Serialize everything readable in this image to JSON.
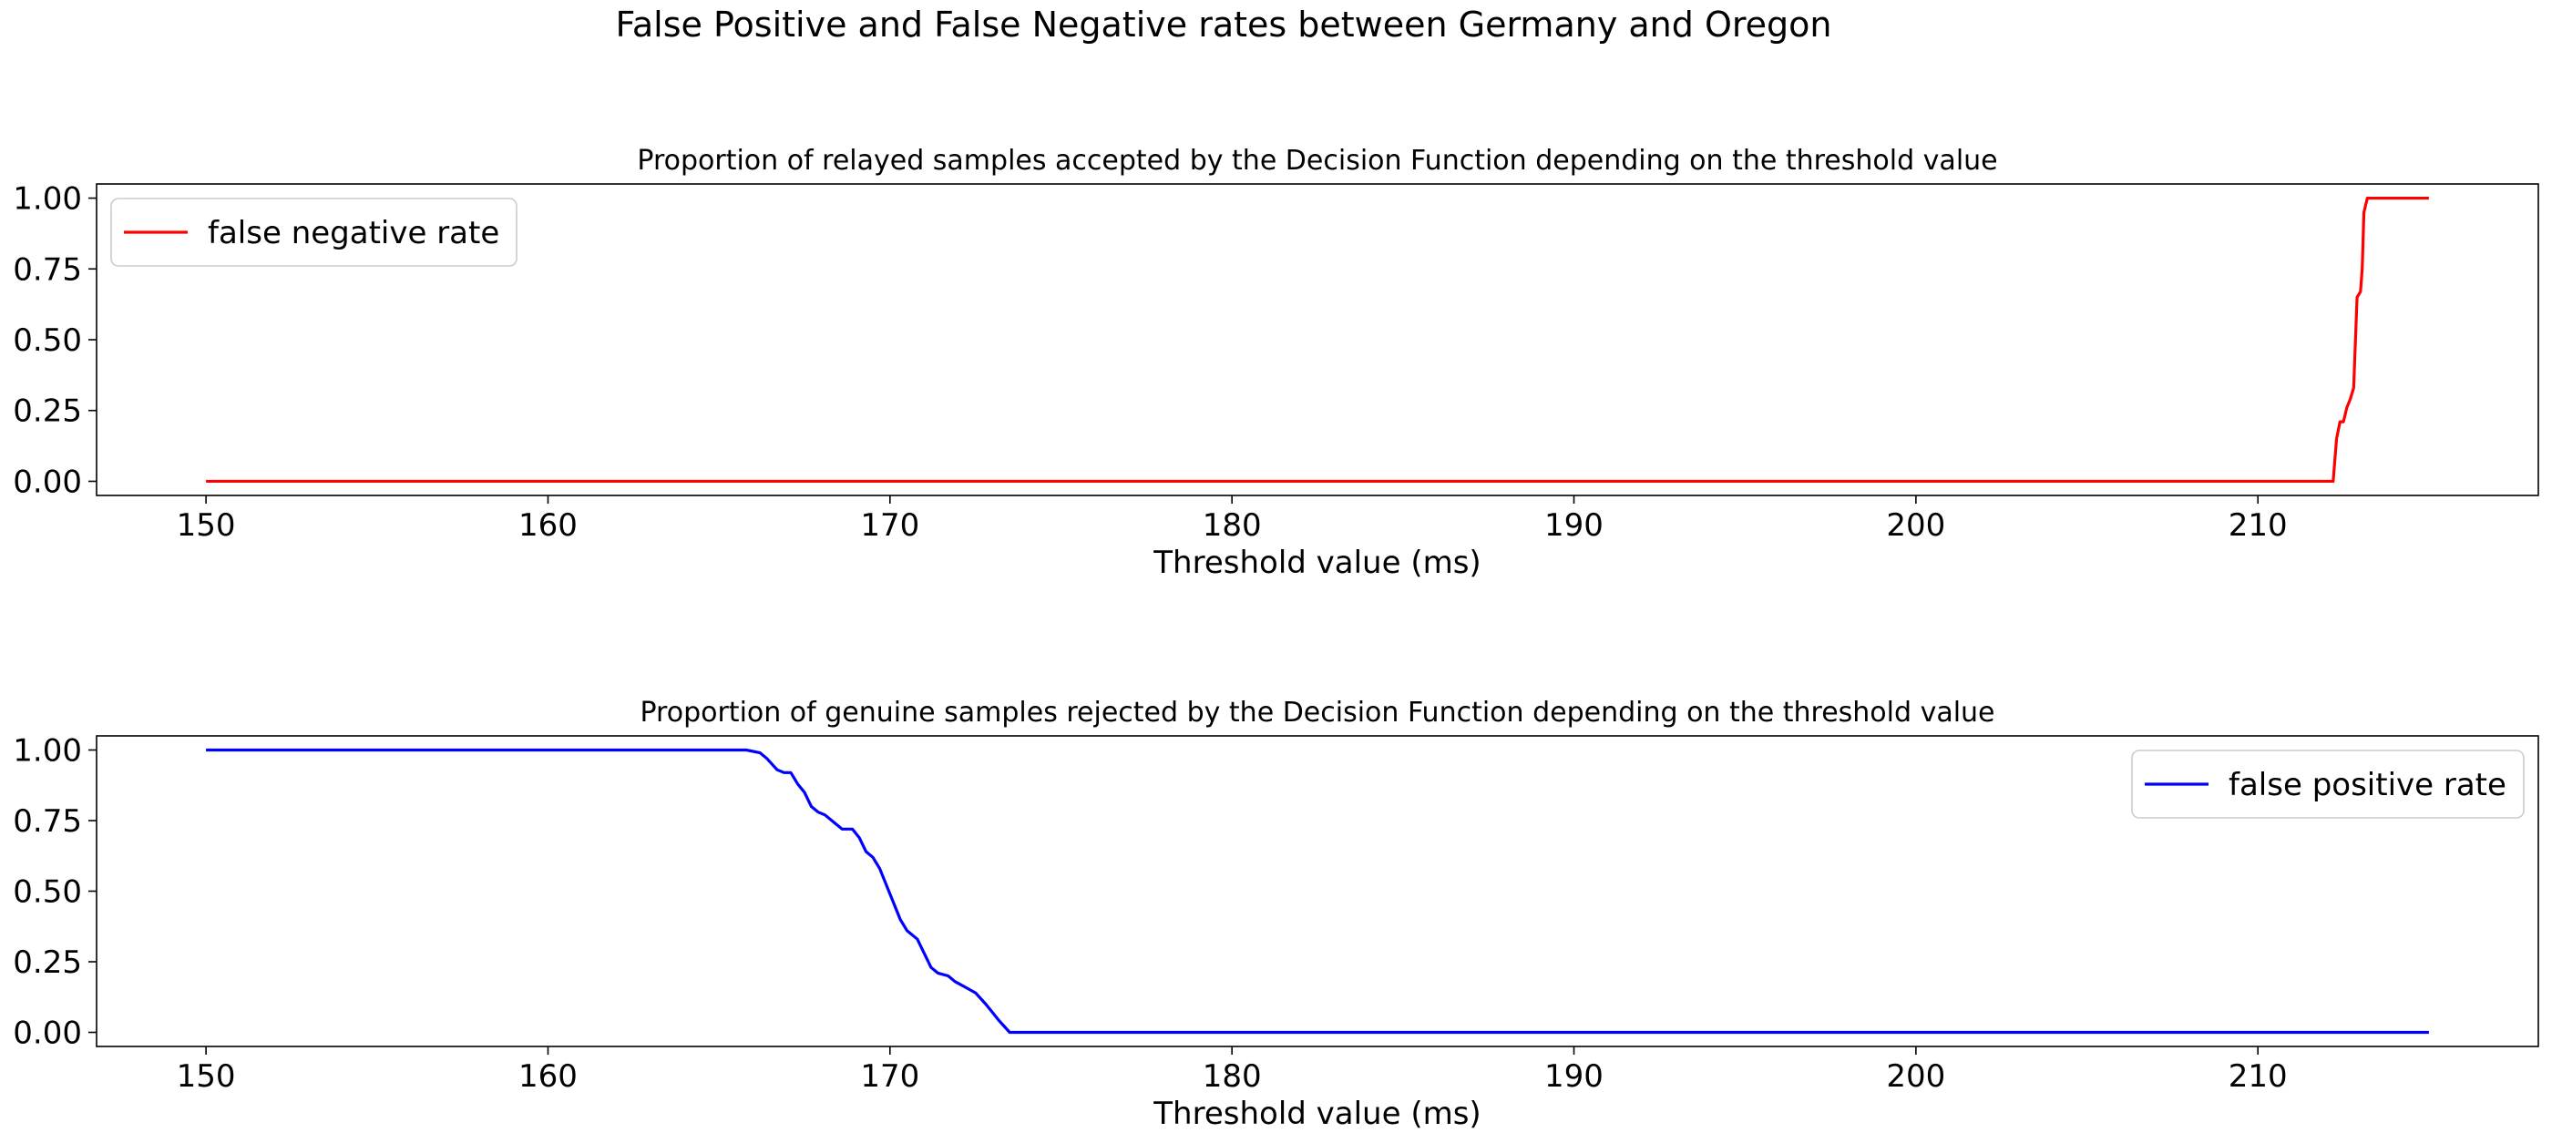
{
  "figure": {
    "suptitle": "False Positive and False Negative rates between Germany and Oregon"
  },
  "chart_data": [
    {
      "type": "line",
      "title": "Proportion of relayed samples accepted by the Decision Function depending on the threshold value",
      "xlabel": "Threshold value (ms)",
      "ylabel": "",
      "xlim": [
        146.8,
        218.2
      ],
      "ylim": [
        -0.05,
        1.05
      ],
      "xticks": [
        150,
        160,
        170,
        180,
        190,
        200,
        210
      ],
      "xtick_labels": [
        "150",
        "160",
        "170",
        "180",
        "190",
        "200",
        "210"
      ],
      "yticks": [
        0.0,
        0.25,
        0.5,
        0.75,
        1.0
      ],
      "ytick_labels": [
        "0.00",
        "0.25",
        "0.50",
        "0.75",
        "1.00"
      ],
      "grid": false,
      "legend_position": "top-left",
      "series": [
        {
          "name": "false negative rate",
          "color": "#ff0000",
          "x": [
            150,
            212.2,
            212.3,
            212.4,
            212.5,
            212.6,
            212.7,
            212.8,
            212.9,
            213.0,
            213.05,
            213.1,
            213.2,
            213.3,
            213.4,
            214.0,
            215.0
          ],
          "y": [
            0.0,
            0.0,
            0.15,
            0.21,
            0.21,
            0.26,
            0.29,
            0.33,
            0.65,
            0.67,
            0.75,
            0.95,
            1.0,
            1.0,
            1.0,
            1.0,
            1.0
          ]
        }
      ]
    },
    {
      "type": "line",
      "title": "Proportion of genuine samples rejected by the Decision Function depending on the threshold value",
      "xlabel": "Threshold value (ms)",
      "ylabel": "",
      "xlim": [
        146.8,
        218.2
      ],
      "ylim": [
        -0.05,
        1.05
      ],
      "xticks": [
        150,
        160,
        170,
        180,
        190,
        200,
        210
      ],
      "xtick_labels": [
        "150",
        "160",
        "170",
        "180",
        "190",
        "200",
        "210"
      ],
      "yticks": [
        0.0,
        0.25,
        0.5,
        0.75,
        1.0
      ],
      "ytick_labels": [
        "0.00",
        "0.25",
        "0.50",
        "0.75",
        "1.00"
      ],
      "grid": false,
      "legend_position": "top-right",
      "series": [
        {
          "name": "false positive rate",
          "color": "#0000ff",
          "x": [
            150,
            165.8,
            166.2,
            166.4,
            166.7,
            166.9,
            167.1,
            167.3,
            167.5,
            167.7,
            167.9,
            168.1,
            168.4,
            168.6,
            168.9,
            169.1,
            169.3,
            169.5,
            169.7,
            169.9,
            170.1,
            170.3,
            170.5,
            170.8,
            171.0,
            171.2,
            171.4,
            171.7,
            171.9,
            172.2,
            172.5,
            172.8,
            173.0,
            173.2,
            173.5,
            180,
            190,
            200,
            215
          ],
          "y": [
            1.0,
            1.0,
            0.99,
            0.97,
            0.93,
            0.92,
            0.92,
            0.88,
            0.85,
            0.8,
            0.78,
            0.77,
            0.74,
            0.72,
            0.72,
            0.69,
            0.64,
            0.62,
            0.58,
            0.52,
            0.46,
            0.4,
            0.36,
            0.33,
            0.28,
            0.23,
            0.21,
            0.2,
            0.18,
            0.16,
            0.14,
            0.1,
            0.07,
            0.04,
            0.0,
            0.0,
            0.0,
            0.0,
            0.0
          ]
        }
      ]
    }
  ]
}
